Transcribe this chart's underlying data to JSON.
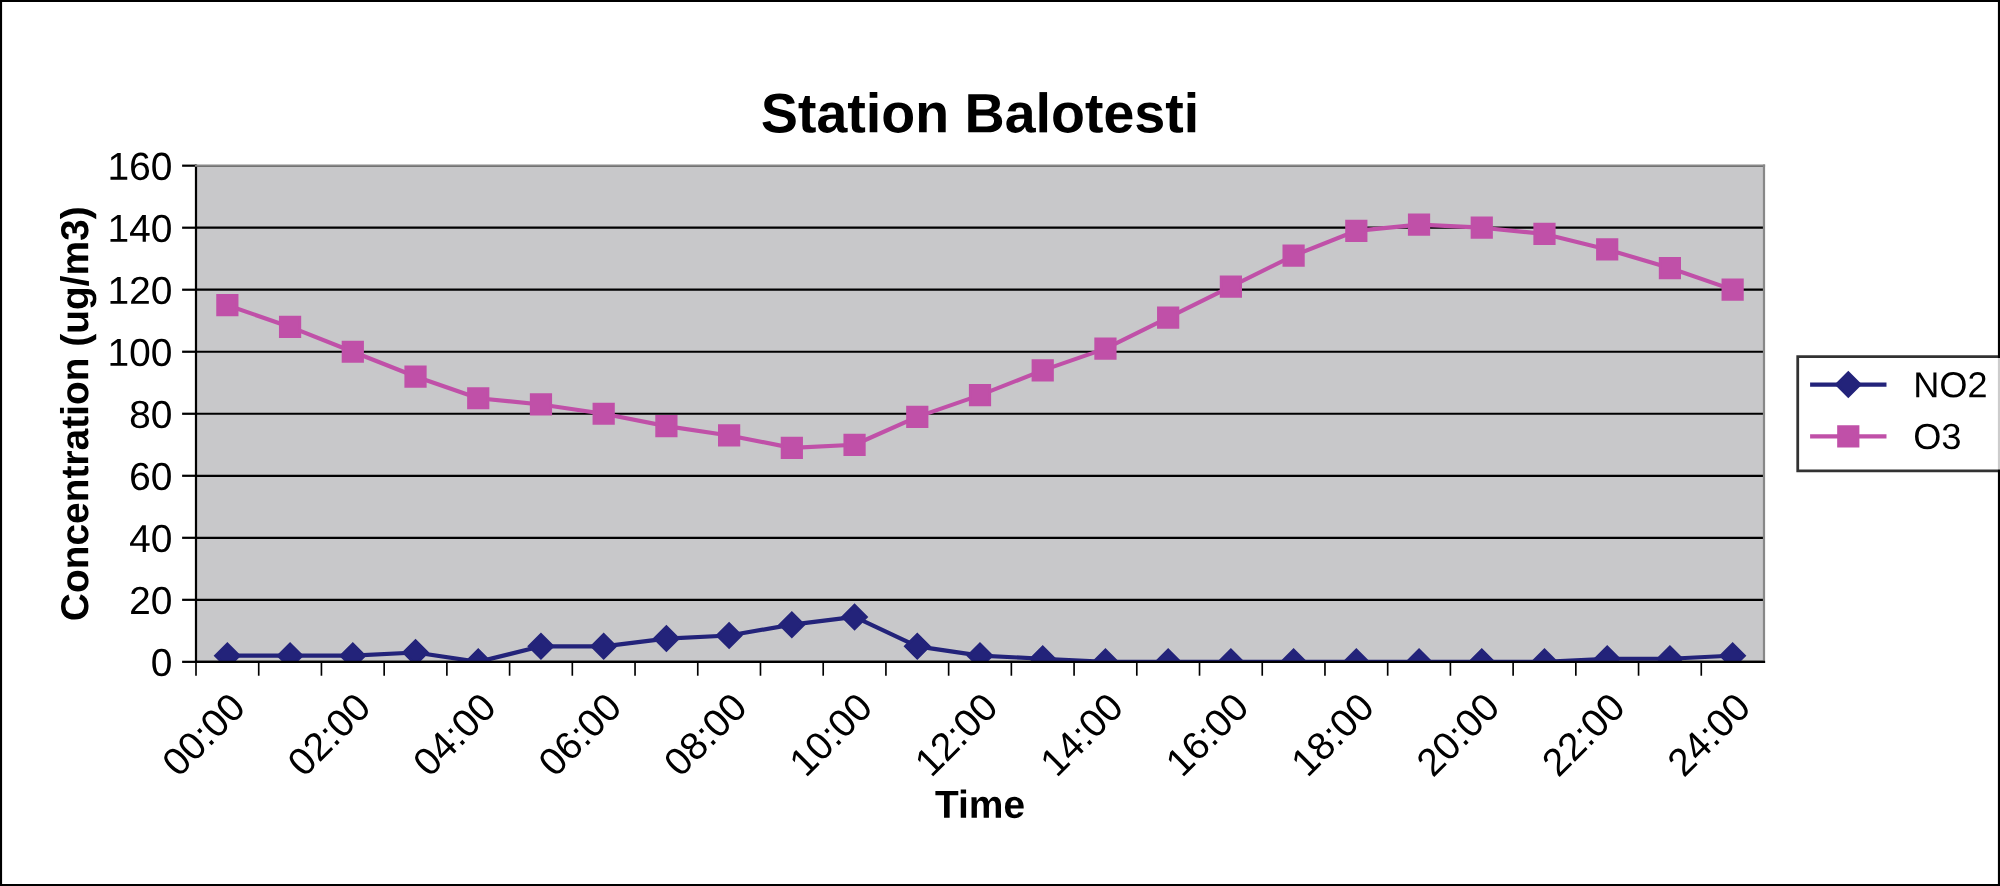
{
  "chart_data": {
    "type": "line",
    "title": "Station Balotesti",
    "xlabel": "Time",
    "ylabel": "Concentration (ug/m3)",
    "categories": [
      "00:00",
      null,
      "02:00",
      null,
      "04:00",
      null,
      "06:00",
      null,
      "08:00",
      null,
      "10:00",
      null,
      "12:00",
      null,
      "14:00",
      null,
      "16:00",
      null,
      "18:00",
      null,
      "20:00",
      null,
      "22:00",
      null,
      "24:00"
    ],
    "series": [
      {
        "name": "NO2",
        "color": "#23237a",
        "marker": "diamond",
        "values": [
          2,
          2,
          2,
          3,
          0,
          5,
          5,
          7.5,
          8.5,
          12,
          14.5,
          5,
          2,
          1,
          0,
          0,
          0,
          0,
          0,
          0,
          0,
          0,
          1,
          1,
          2
        ]
      },
      {
        "name": "O3",
        "color": "#c050a8",
        "marker": "square",
        "values": [
          115,
          108,
          100,
          92,
          85,
          83,
          80,
          76,
          73,
          69,
          70,
          79,
          86,
          94,
          101,
          111,
          121,
          131,
          139,
          141,
          140,
          138,
          133,
          127,
          120
        ]
      }
    ],
    "ylim": [
      0,
      160
    ],
    "yticks": [
      0,
      20,
      40,
      60,
      80,
      100,
      120,
      140,
      160
    ],
    "grid": "y",
    "legend": "right",
    "line_style": "solid"
  }
}
